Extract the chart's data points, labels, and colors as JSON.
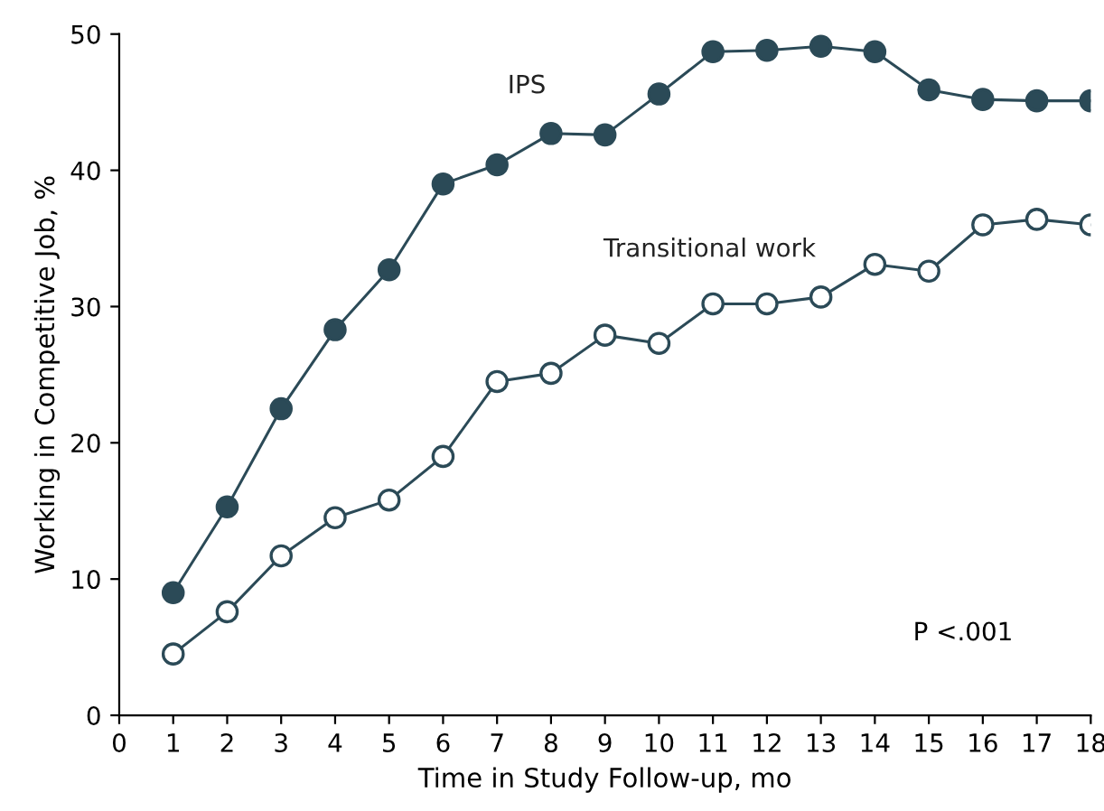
{
  "chart_data": {
    "type": "line",
    "xlabel": "Time in Study Follow-up, mo",
    "ylabel": "Working in Competitive Job, %",
    "x": [
      1,
      2,
      3,
      4,
      5,
      6,
      7,
      8,
      9,
      10,
      11,
      12,
      13,
      14,
      15,
      16,
      17,
      18
    ],
    "series": [
      {
        "name": "IPS",
        "color": "#2b4a57",
        "values": [
          9.0,
          15.3,
          22.5,
          28.3,
          32.7,
          39.0,
          40.4,
          42.7,
          42.6,
          45.6,
          48.7,
          48.8,
          49.1,
          48.7,
          45.9,
          45.2,
          45.1,
          45.1
        ]
      },
      {
        "name": "Transitional work",
        "color": "#2b4a57",
        "values": [
          4.5,
          7.6,
          11.7,
          14.5,
          15.8,
          19.0,
          24.5,
          25.1,
          27.9,
          27.3,
          30.2,
          30.2,
          30.7,
          33.1,
          32.6,
          36.0,
          36.4,
          36.0
        ]
      }
    ],
    "xlim": [
      0,
      18
    ],
    "xticks": [
      0,
      1,
      2,
      3,
      4,
      5,
      6,
      7,
      8,
      9,
      10,
      11,
      12,
      13,
      14,
      15,
      16,
      17,
      18
    ],
    "ylim": [
      0,
      50
    ],
    "yticks": [
      0,
      10,
      20,
      30,
      40,
      50
    ],
    "annotations": [
      "P <.001"
    ],
    "marker": "circle",
    "line_style": "solid",
    "grid": false,
    "legend": false
  }
}
